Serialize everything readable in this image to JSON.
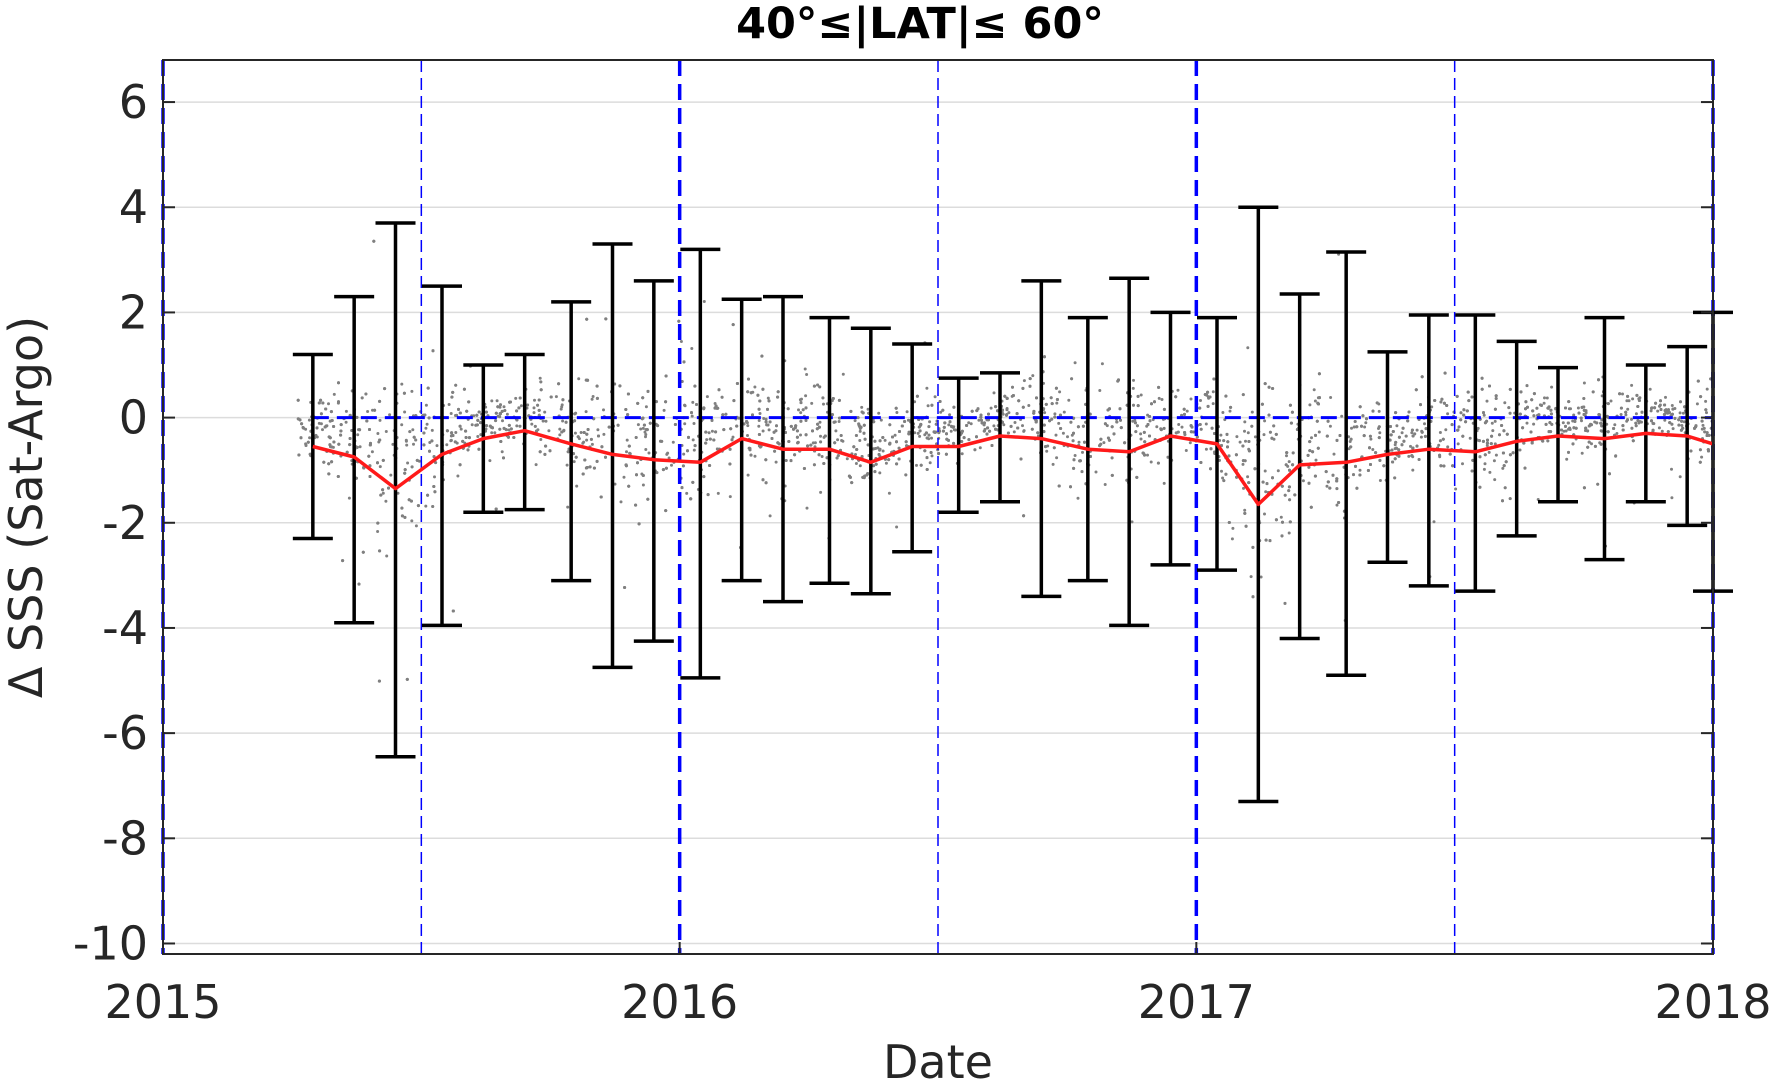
{
  "chart_data": {
    "type": "scatter",
    "title": "40°≤|LAT|≤ 60°",
    "xlabel": "Date",
    "ylabel": "Δ SSS (Sat-Argo)",
    "xlim": [
      2015,
      2018
    ],
    "ylim": [
      -10.2,
      6.8
    ],
    "xticks": [
      2015,
      2016,
      2017,
      2018
    ],
    "xtick_labels": [
      "2015",
      "2016",
      "2017",
      "2018"
    ],
    "yticks": [
      6,
      4,
      2,
      0,
      -2,
      -4,
      -6,
      -8,
      -10
    ],
    "ytick_labels": [
      "6",
      "4",
      "2",
      "0",
      "-2",
      "-4",
      "-6",
      "-8",
      "-10"
    ],
    "grid": "horizontal",
    "colors": {
      "points": "#808080",
      "mean_line": "#ff1a1a",
      "error_bars": "#000000",
      "reference_lines": "#0000ff",
      "grid": "#dcdcdc"
    },
    "reference_lines": {
      "y_zero": 0,
      "year_boundaries": [
        2015,
        2016,
        2017,
        2018
      ],
      "half_year_lines": [
        2015.5,
        2016.5,
        2017.5
      ]
    },
    "series": [
      {
        "kind": "monthly_mean_with_error_bars",
        "x": [
          2015.29,
          2015.37,
          2015.45,
          2015.54,
          2015.62,
          2015.7,
          2015.79,
          2015.87,
          2015.95,
          2016.04,
          2016.12,
          2016.2,
          2016.29,
          2016.37,
          2016.45,
          2016.54,
          2016.62,
          2016.7,
          2016.79,
          2016.87,
          2016.95,
          2017.04,
          2017.12,
          2017.2,
          2017.29,
          2017.37,
          2017.45,
          2017.54,
          2017.62,
          2017.7,
          2017.79,
          2017.87,
          2017.95,
          2018.0
        ],
        "mean": [
          -0.55,
          -0.75,
          -1.35,
          -0.7,
          -0.4,
          -0.25,
          -0.5,
          -0.7,
          -0.8,
          -0.85,
          -0.4,
          -0.6,
          -0.6,
          -0.85,
          -0.55,
          -0.55,
          -0.35,
          -0.4,
          -0.6,
          -0.65,
          -0.35,
          -0.5,
          -1.65,
          -0.9,
          -0.85,
          -0.7,
          -0.6,
          -0.65,
          -0.45,
          -0.35,
          -0.4,
          -0.3,
          -0.35,
          -0.5
        ],
        "upper": [
          1.2,
          2.3,
          3.7,
          2.5,
          1.0,
          1.2,
          2.2,
          3.3,
          2.6,
          3.2,
          2.25,
          2.3,
          1.9,
          1.7,
          1.4,
          0.75,
          0.85,
          2.6,
          1.9,
          2.65,
          2.0,
          1.9,
          4.0,
          2.35,
          3.15,
          1.25,
          1.95,
          1.95,
          1.45,
          0.95,
          1.9,
          1.0,
          1.35,
          2.0
        ],
        "lower": [
          -2.3,
          -3.9,
          -6.45,
          -3.95,
          -1.8,
          -1.75,
          -3.1,
          -4.75,
          -4.25,
          -4.95,
          -3.1,
          -3.5,
          -3.15,
          -3.35,
          -2.55,
          -1.8,
          -1.6,
          -3.4,
          -3.1,
          -3.95,
          -2.8,
          -2.9,
          -7.3,
          -4.2,
          -4.9,
          -2.75,
          -3.2,
          -3.3,
          -2.25,
          -1.6,
          -2.7,
          -1.6,
          -2.05,
          -3.3
        ]
      }
    ]
  }
}
